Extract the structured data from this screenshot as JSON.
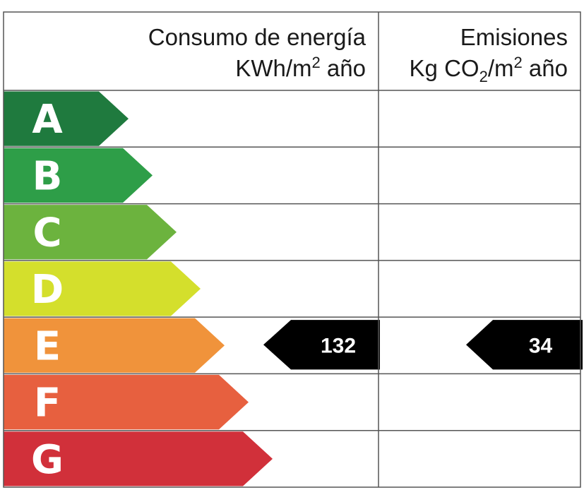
{
  "header": {
    "consumo_line1": "Consumo de energía",
    "consumo_unit_base": "KWh/m",
    "consumo_unit_sup": "2",
    "consumo_unit_rest": " año",
    "emisiones_line1": "Emisiones",
    "emisiones_unit_pre": "Kg CO",
    "emisiones_unit_sub": "2",
    "emisiones_unit_mid": "/m",
    "emisiones_unit_sup": "2",
    "emisiones_unit_rest": " año"
  },
  "chart_data": {
    "type": "table",
    "categories": [
      "A",
      "B",
      "C",
      "D",
      "E",
      "F",
      "G"
    ],
    "colors": [
      "#1f7a3e",
      "#2e9e48",
      "#6cb33e",
      "#d4df2c",
      "#f0933b",
      "#e7603f",
      "#d1303a"
    ],
    "rating": "E",
    "consumo_value": "132",
    "emisiones_value": "34",
    "marker_color": "#000000"
  }
}
